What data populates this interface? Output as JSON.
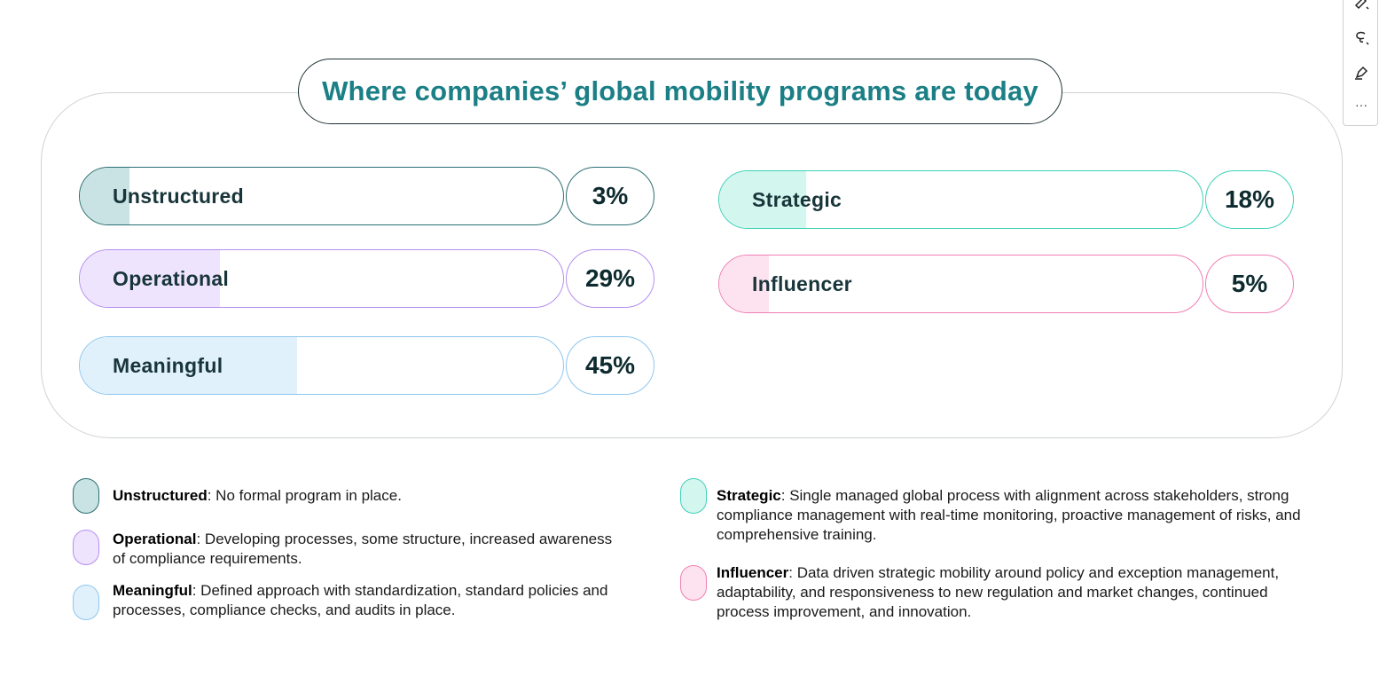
{
  "chart_data": {
    "type": "bar",
    "title": "Where companies’ global mobility programs are today",
    "categories": [
      "Unstructured",
      "Operational",
      "Meaningful",
      "Strategic",
      "Influencer"
    ],
    "values": [
      3,
      29,
      45,
      18,
      5
    ],
    "value_labels": [
      "3%",
      "29%",
      "45%",
      "18%",
      "5%"
    ],
    "unit": "%",
    "xlim": [
      0,
      100
    ],
    "grid": false,
    "legend_placement": "bottom"
  },
  "colors": {
    "title": "#1b7f86",
    "unstructured": {
      "border": "#2c6f73",
      "fill": "#c9e2e4"
    },
    "operational": {
      "border": "#b58ef0",
      "fill": "#efe4fd"
    },
    "meaningful": {
      "border": "#8dc7ef",
      "fill": "#e1f1fc"
    },
    "strategic": {
      "border": "#3fd1b8",
      "fill": "#d3f6ef"
    },
    "influencer": {
      "border": "#ef7fb4",
      "fill": "#fde3ef"
    }
  },
  "legend": [
    {
      "name": "Unstructured",
      "desc": ": No formal program in place."
    },
    {
      "name": "Operational",
      "desc": ": Developing processes, some structure, increased awareness of compliance requirements."
    },
    {
      "name": "Meaningful",
      "desc": ": Defined approach with standardization, standard policies and processes, compliance checks, and audits in place."
    },
    {
      "name": "Strategic",
      "desc": ": Single managed global process with alignment across stakeholders, strong compliance management with real-time monitoring, proactive management of risks, and comprehensive training."
    },
    {
      "name": "Influencer",
      "desc": ": Data driven strategic mobility around policy and exception management, adaptability, and responsiveness to new regulation and market changes, continued process improvement, and innovation."
    }
  ],
  "toolbar": {
    "items": [
      "highlighter-icon",
      "lasso-icon",
      "pen-icon",
      "more-icon"
    ],
    "more_label": "···"
  }
}
